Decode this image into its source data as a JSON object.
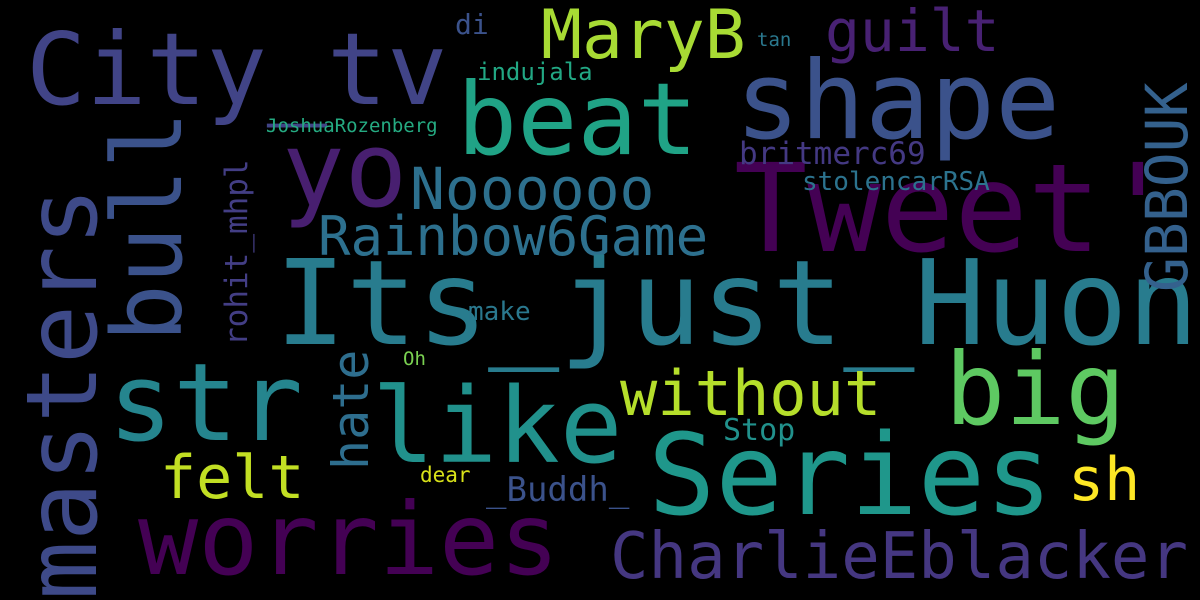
{
  "words": [
    {
      "text": "City_tv",
      "color": "#414487"
    },
    {
      "text": "shape",
      "color": "#3b528b"
    },
    {
      "text": "beat",
      "color": "#20a386"
    },
    {
      "text": "MaryB",
      "color": "#a8db34"
    },
    {
      "text": "guilt",
      "color": "#482173"
    },
    {
      "text": "di",
      "color": "#3b528b"
    },
    {
      "text": "tan",
      "color": "#2a788e"
    },
    {
      "text": "indujala",
      "color": "#22a884"
    },
    {
      "text": "JoshuaRozenberg",
      "color": "#25ab82"
    },
    {
      "text": "yo",
      "color": "#481f70"
    },
    {
      "text": "Tweet'",
      "color": "#440154"
    },
    {
      "text": "Noooooo",
      "color": "#2d708e"
    },
    {
      "text": "britmerc69",
      "color": "#443983"
    },
    {
      "text": "stolencarRSA",
      "color": "#2c738e"
    },
    {
      "text": "Rainbow6Game",
      "color": "#2d708e"
    },
    {
      "text": "Its_just_Huong",
      "color": "#287c8e"
    },
    {
      "text": "make",
      "color": "#2a788e"
    },
    {
      "text": "Oh",
      "color": "#7ad151"
    },
    {
      "text": "str",
      "color": "#25858e"
    },
    {
      "text": "like",
      "color": "#21918c"
    },
    {
      "text": "big",
      "color": "#5ec962"
    },
    {
      "text": "without",
      "color": "#b5de2b"
    },
    {
      "text": "Stop",
      "color": "#21918c"
    },
    {
      "text": "felt",
      "color": "#c2df23"
    },
    {
      "text": "dear",
      "color": "#d8e219"
    },
    {
      "text": "_Buddh_",
      "color": "#3b528b"
    },
    {
      "text": "Series",
      "color": "#1f978b"
    },
    {
      "text": "sh",
      "color": "#fde725"
    },
    {
      "text": "worries",
      "color": "#440154"
    },
    {
      "text": "CharlieEblacker",
      "color": "#453781"
    },
    {
      "text": "masters",
      "color": "#3e4a89"
    },
    {
      "text": "bull",
      "color": "#3b528b"
    },
    {
      "text": "GBBOUK",
      "color": "#34618d"
    },
    {
      "text": "rohit_mhpl",
      "color": "#433e85"
    },
    {
      "text": "hate",
      "color": "#2e6e8e"
    }
  ]
}
